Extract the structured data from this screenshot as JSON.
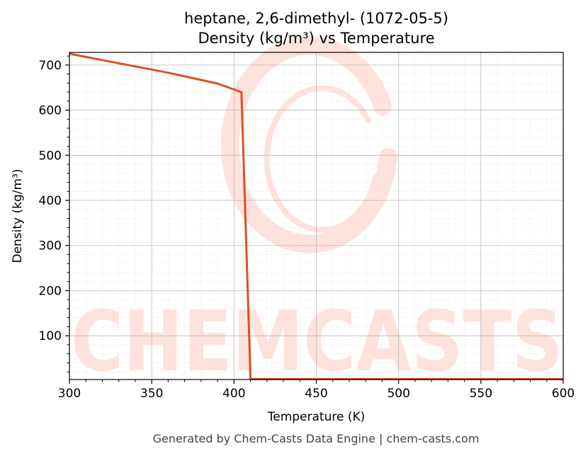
{
  "chart_data": {
    "type": "line",
    "title": "heptane, 2,6-dimethyl- (1072-05-5)",
    "subtitle": "Density (kg/m³) vs Temperature",
    "xlabel": "Temperature (K)",
    "ylabel": "Density (kg/m³)",
    "xlim": [
      300,
      600
    ],
    "ylim": [
      3,
      728
    ],
    "xticks": [
      300,
      350,
      400,
      450,
      500,
      550,
      600
    ],
    "yticks": [
      100,
      200,
      300,
      400,
      500,
      600,
      700
    ],
    "grid": true,
    "series": [
      {
        "color": "#d95323",
        "x": [
          300,
          330,
          360,
          390,
          404.5,
          410,
          410.5,
          450,
          500,
          550,
          600
        ],
        "y": [
          725,
          704,
          683,
          659,
          640,
          5,
          4,
          4,
          4,
          4,
          4
        ]
      }
    ]
  },
  "watermark": {
    "text": "CHEMCASTS",
    "color": "#ffe2dc"
  },
  "footer": {
    "text": "Generated by Chem-Casts Data Engine | chem-casts.com"
  }
}
